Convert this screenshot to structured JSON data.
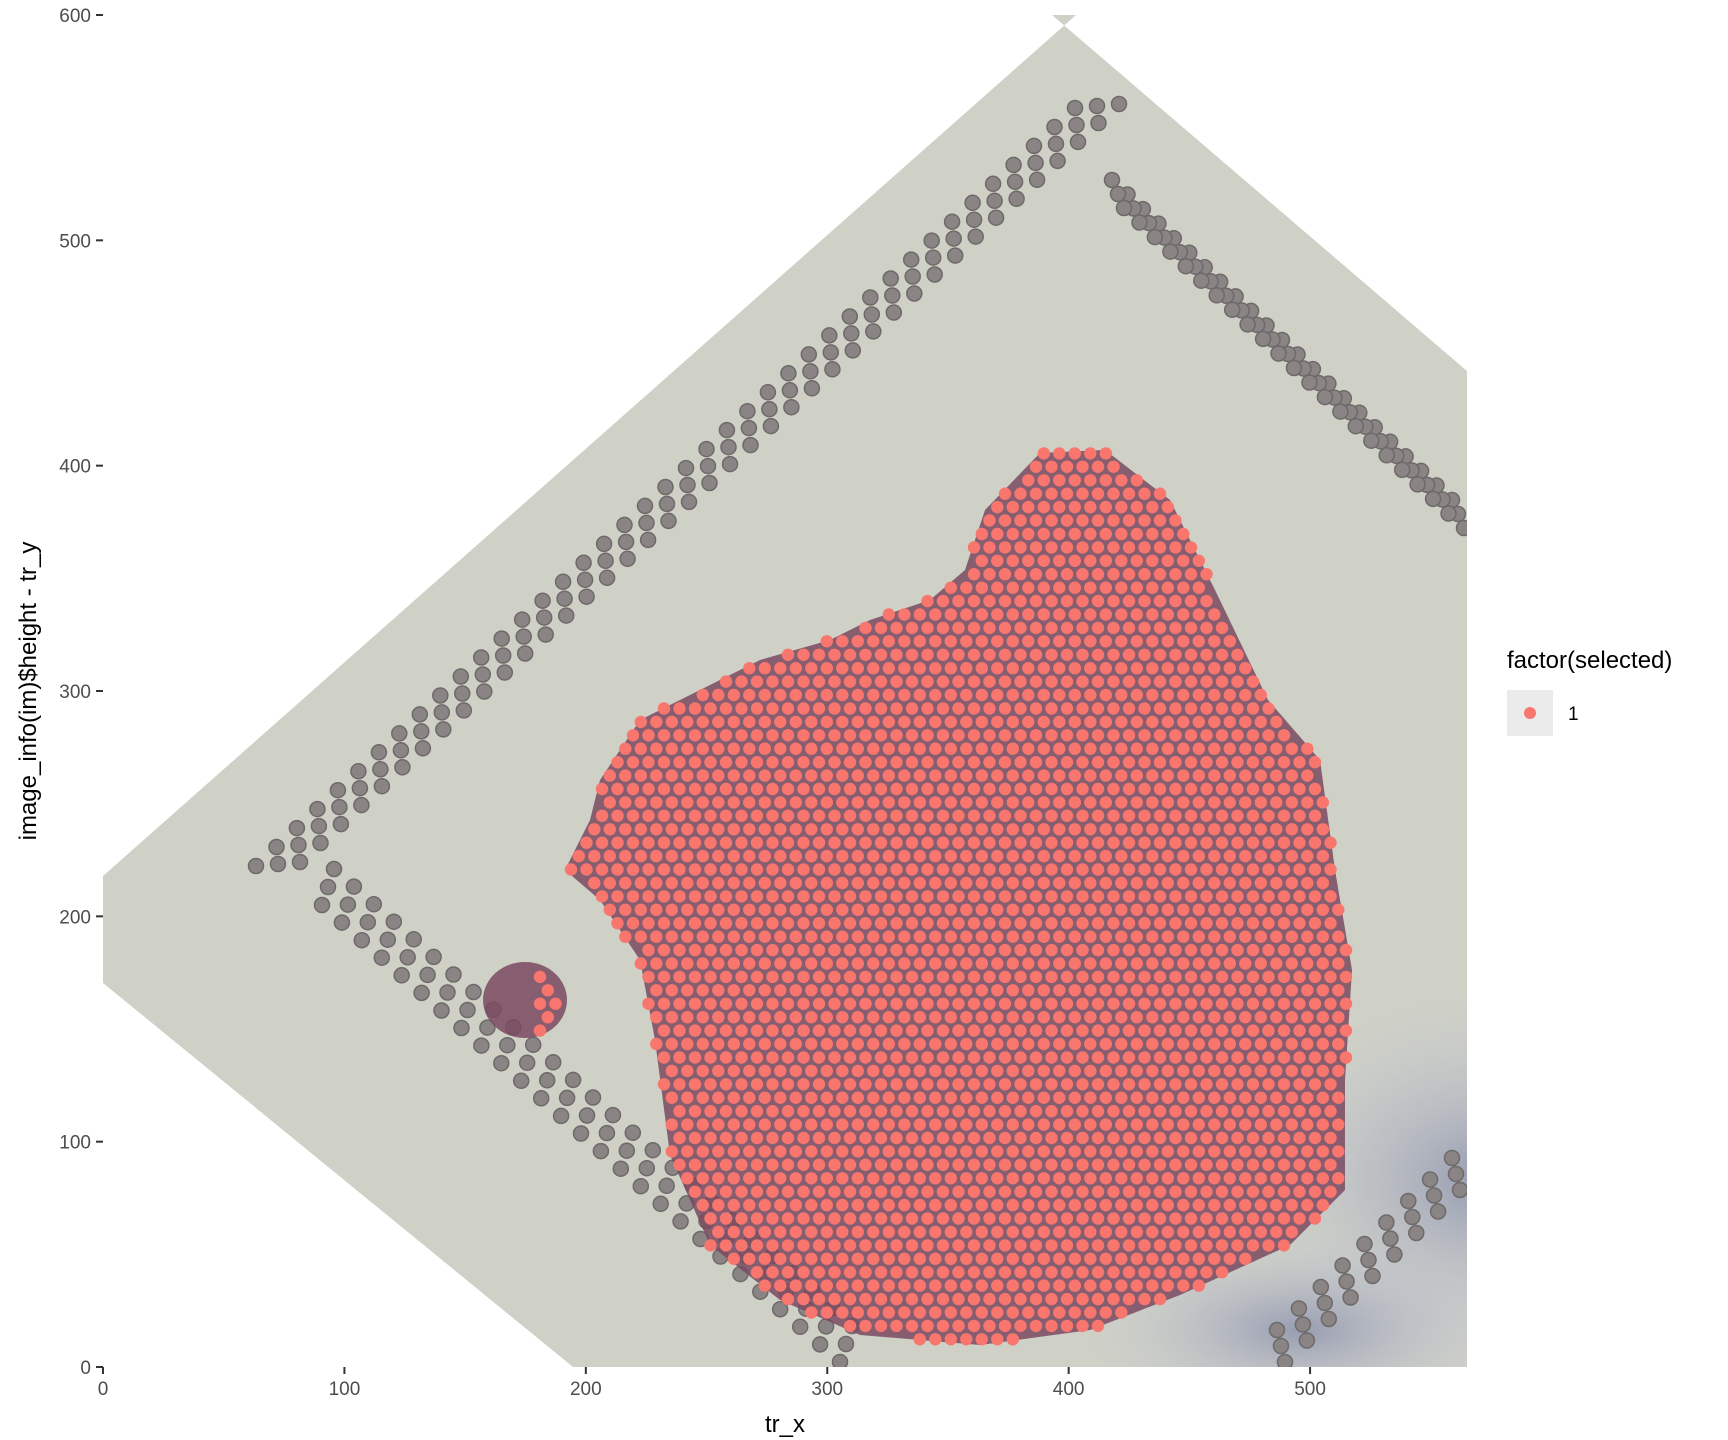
{
  "chart_data": {
    "type": "scatter",
    "title": "",
    "xlabel": "tr_x",
    "ylabel": "image_info(im)$height - tr_y",
    "xlim": [
      0,
      565
    ],
    "ylim": [
      0,
      600
    ],
    "x_ticks": [
      0,
      100,
      200,
      300,
      400,
      500
    ],
    "y_ticks": [
      0,
      100,
      200,
      300,
      400,
      500,
      600
    ],
    "x_tick_labels": [
      "0",
      "100",
      "200",
      "300",
      "400",
      "500"
    ],
    "y_tick_labels": [
      "0",
      "100",
      "200",
      "300",
      "400",
      "500",
      "600"
    ],
    "grid": false,
    "background": "tissue image (rotated slide, H&E stained section)",
    "point_color": "#F8766D",
    "legend": {
      "title": "factor(selected)",
      "placement": "right",
      "entries": [
        {
          "label": "1",
          "color": "#F8766D"
        }
      ]
    },
    "series": [
      {
        "name": "1",
        "description_region": "selected spots covering tissue section",
        "approx_extent_x": [
          160,
          522
        ],
        "approx_extent_y": [
          8,
          405
        ]
      }
    ]
  }
}
